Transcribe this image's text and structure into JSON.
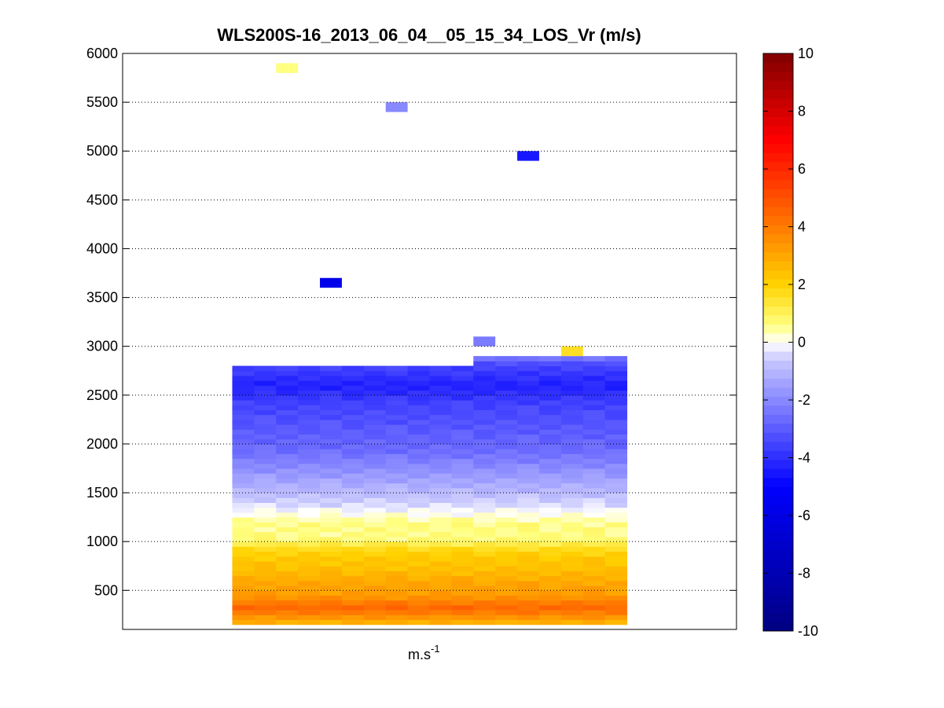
{
  "chart_data": {
    "type": "heatmap",
    "title": "WLS200S-16_2013_06_04__05_15_34_LOS_Vr (m/s)",
    "xlabel_base": "m.s",
    "xlabel_exp": "-1",
    "ylabel": "",
    "y_ticks": [
      "500",
      "1000",
      "1500",
      "2000",
      "2500",
      "3000",
      "3500",
      "4000",
      "4500",
      "5000",
      "5500",
      "6000"
    ],
    "ylim": [
      100,
      6000
    ],
    "xlim": [
      0,
      28
    ],
    "grid": "dotted horizontal at y ticks",
    "colorbar": {
      "vmin": -10,
      "vmax": 10,
      "ticks": [
        "-10",
        "-8",
        "-6",
        "-4",
        "-2",
        "0",
        "2",
        "4",
        "6",
        "8",
        "10"
      ],
      "colormap": "blue-white-yellow-red"
    },
    "scattered_cells": [
      {
        "x": 7.5,
        "y": 5850,
        "value": 0.6
      },
      {
        "x": 12.5,
        "y": 5450,
        "value": -2.0
      },
      {
        "x": 18.5,
        "y": 4950,
        "value": -4.5
      },
      {
        "x": 9.5,
        "y": 3650,
        "value": -5.8
      },
      {
        "x": 16.5,
        "y": 3050,
        "value": -2.3
      },
      {
        "x": 20.5,
        "y": 2950,
        "value": 1.6
      }
    ],
    "profile_x_range": [
      5,
      23
    ],
    "profile_y_top": 2800,
    "profile_y_top_right": 2900,
    "profile_right_start_x": 16,
    "profile": [
      {
        "y": 150,
        "value": 2.8
      },
      {
        "y": 200,
        "value": 3.4
      },
      {
        "y": 250,
        "value": 4.0
      },
      {
        "y": 300,
        "value": 4.4
      },
      {
        "y": 350,
        "value": 4.0
      },
      {
        "y": 400,
        "value": 3.5
      },
      {
        "y": 450,
        "value": 3.2
      },
      {
        "y": 500,
        "value": 3.1
      },
      {
        "y": 550,
        "value": 3.0
      },
      {
        "y": 600,
        "value": 2.8
      },
      {
        "y": 650,
        "value": 2.6
      },
      {
        "y": 700,
        "value": 2.4
      },
      {
        "y": 750,
        "value": 2.3
      },
      {
        "y": 800,
        "value": 2.2
      },
      {
        "y": 850,
        "value": 2.0
      },
      {
        "y": 900,
        "value": 1.7
      },
      {
        "y": 950,
        "value": 1.2
      },
      {
        "y": 1000,
        "value": 0.7
      },
      {
        "y": 1050,
        "value": 0.6
      },
      {
        "y": 1100,
        "value": 0.6
      },
      {
        "y": 1150,
        "value": 0.6
      },
      {
        "y": 1200,
        "value": 0.4
      },
      {
        "y": 1250,
        "value": 0.1
      },
      {
        "y": 1300,
        "value": -0.1
      },
      {
        "y": 1350,
        "value": -0.4
      },
      {
        "y": 1400,
        "value": -0.6
      },
      {
        "y": 1450,
        "value": -0.8
      },
      {
        "y": 1500,
        "value": -1.0
      },
      {
        "y": 1550,
        "value": -1.2
      },
      {
        "y": 1600,
        "value": -1.4
      },
      {
        "y": 1650,
        "value": -1.6
      },
      {
        "y": 1700,
        "value": -1.8
      },
      {
        "y": 1750,
        "value": -2.0
      },
      {
        "y": 1800,
        "value": -2.2
      },
      {
        "y": 1850,
        "value": -2.4
      },
      {
        "y": 1900,
        "value": -2.6
      },
      {
        "y": 1950,
        "value": -2.7
      },
      {
        "y": 2000,
        "value": -2.8
      },
      {
        "y": 2050,
        "value": -2.9
      },
      {
        "y": 2100,
        "value": -3.0
      },
      {
        "y": 2150,
        "value": -3.1
      },
      {
        "y": 2200,
        "value": -3.2
      },
      {
        "y": 2250,
        "value": -3.3
      },
      {
        "y": 2300,
        "value": -3.4
      },
      {
        "y": 2350,
        "value": -3.5
      },
      {
        "y": 2400,
        "value": -3.6
      },
      {
        "y": 2450,
        "value": -3.8
      },
      {
        "y": 2500,
        "value": -4.0
      },
      {
        "y": 2550,
        "value": -4.2
      },
      {
        "y": 2600,
        "value": -4.2
      },
      {
        "y": 2650,
        "value": -4.0
      },
      {
        "y": 2700,
        "value": -3.8
      },
      {
        "y": 2750,
        "value": -3.6
      },
      {
        "y": 2800,
        "value": -3.3
      },
      {
        "y": 2850,
        "value": -2.5
      }
    ]
  }
}
